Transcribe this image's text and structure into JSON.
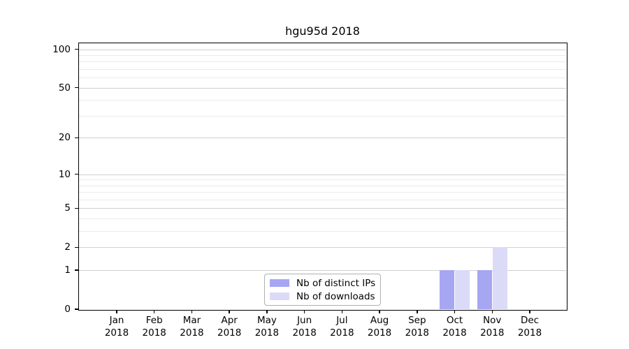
{
  "chart_data": {
    "type": "bar",
    "title": "hgu95d 2018",
    "categories": [
      "Jan",
      "Feb",
      "Mar",
      "Apr",
      "May",
      "Jun",
      "Jul",
      "Aug",
      "Sep",
      "Oct",
      "Nov",
      "Dec"
    ],
    "year_label": "2018",
    "series": [
      {
        "name": "Nb of distinct IPs",
        "color": "#a6a6f2",
        "values": [
          0,
          0,
          0,
          0,
          0,
          0,
          0,
          0,
          0,
          1,
          1,
          0
        ]
      },
      {
        "name": "Nb of downloads",
        "color": "#dbdbf8",
        "values": [
          0,
          0,
          0,
          0,
          0,
          0,
          0,
          0,
          0,
          1,
          2,
          0
        ]
      }
    ],
    "y_scale": "log1p",
    "y_ticks": [
      0,
      1,
      2,
      5,
      10,
      20,
      50,
      100
    ],
    "y_minor_gridlines": [
      3,
      4,
      6,
      7,
      8,
      9,
      30,
      40,
      60,
      70,
      80,
      90
    ],
    "ylim": [
      0,
      111
    ],
    "grid": "horizontal",
    "legend_position": "inside-bottom-center",
    "colors": {
      "axis": "#000000",
      "major_grid": "#d0d0d0",
      "minor_grid": "#ebebeb",
      "legend_border": "#b0b0b0",
      "background": "#ffffff"
    }
  }
}
